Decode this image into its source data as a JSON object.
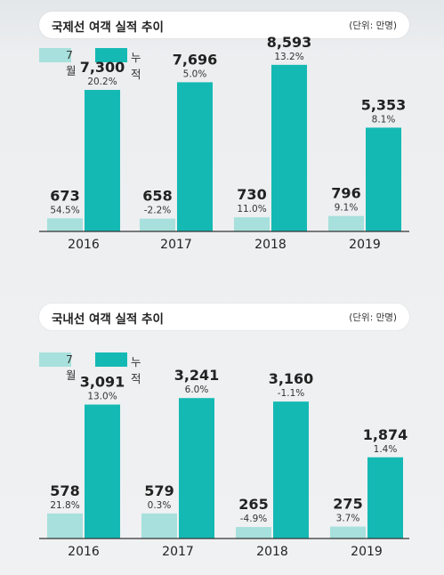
{
  "colors": {
    "monthly": "#a7e0dc",
    "cumulative": "#15b9b4",
    "axis": "#333333"
  },
  "chart_data": [
    {
      "type": "bar",
      "title": "국제선 여객 실적 추이",
      "unit": "(단위: 만명)",
      "legend": [
        "7월",
        "누적"
      ],
      "categories": [
        "2016",
        "2017",
        "2018",
        "2019"
      ],
      "ylim": [
        0,
        9000
      ],
      "series": [
        {
          "name": "7월",
          "values": [
            673,
            658,
            730,
            796
          ],
          "value_labels": [
            "673",
            "658",
            "730",
            "796"
          ],
          "pct_labels": [
            "54.5%",
            "-2.2%",
            "11.0%",
            "9.1%"
          ]
        },
        {
          "name": "누적",
          "values": [
            7300,
            7696,
            8593,
            5353
          ],
          "value_labels": [
            "7,300",
            "7,696",
            "8,593",
            "5,353"
          ],
          "pct_labels": [
            "20.2%",
            "5.0%",
            "13.2%",
            "8.1%"
          ]
        }
      ]
    },
    {
      "type": "bar",
      "title": "국내선 여객 실적 추이",
      "unit": "(단위: 만명)",
      "legend": [
        "7월",
        "누적"
      ],
      "categories": [
        "2016",
        "2017",
        "2018",
        "2019"
      ],
      "ylim": [
        0,
        3800
      ],
      "series": [
        {
          "name": "7월",
          "values": [
            578,
            579,
            265,
            275
          ],
          "value_labels": [
            "578",
            "579",
            "265",
            "275"
          ],
          "pct_labels": [
            "21.8%",
            "0.3%",
            "-4.9%",
            "3.7%"
          ]
        },
        {
          "name": "누적",
          "values": [
            3091,
            3241,
            3160,
            1874
          ],
          "value_labels": [
            "3,091",
            "3,241",
            "3,160",
            "1,874"
          ],
          "pct_labels": [
            "13.0%",
            "6.0%",
            "-1.1%",
            "1.4%"
          ]
        }
      ]
    }
  ]
}
